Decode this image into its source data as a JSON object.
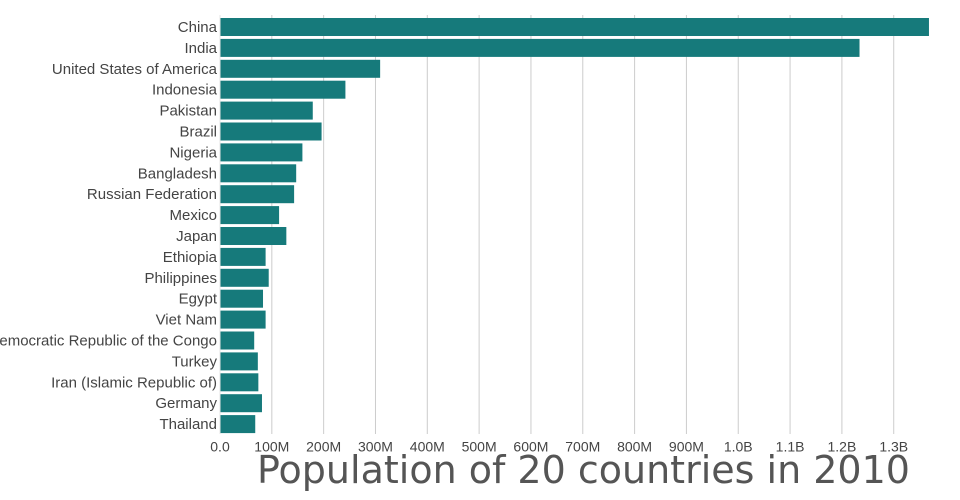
{
  "chart_data": {
    "type": "bar",
    "orientation": "horizontal",
    "title": "Population of 20 countries in 2010",
    "xlabel": "",
    "ylabel": "",
    "xlim": [
      0,
      1370000000
    ],
    "grid": true,
    "bar_color": "#167a7b",
    "text_color": "#444444",
    "title_color": "#555555",
    "grid_color": "#cccccc",
    "ticks": [
      {
        "value": 0,
        "label": "0.0"
      },
      {
        "value": 100000000,
        "label": "100M"
      },
      {
        "value": 200000000,
        "label": "200M"
      },
      {
        "value": 300000000,
        "label": "300M"
      },
      {
        "value": 400000000,
        "label": "400M"
      },
      {
        "value": 500000000,
        "label": "500M"
      },
      {
        "value": 600000000,
        "label": "600M"
      },
      {
        "value": 700000000,
        "label": "700M"
      },
      {
        "value": 800000000,
        "label": "800M"
      },
      {
        "value": 900000000,
        "label": "900M"
      },
      {
        "value": 1000000000,
        "label": "1.0B"
      },
      {
        "value": 1100000000,
        "label": "1.1B"
      },
      {
        "value": 1200000000,
        "label": "1.2B"
      },
      {
        "value": 1300000000,
        "label": "1.3B"
      }
    ],
    "categories": [
      "China",
      "India",
      "United States of America",
      "Indonesia",
      "Pakistan",
      "Brazil",
      "Nigeria",
      "Bangladesh",
      "Russian Federation",
      "Mexico",
      "Japan",
      "Ethiopia",
      "Philippines",
      "Egypt",
      "Viet Nam",
      "Democratic Republic of the Congo",
      "Turkey",
      "Iran (Islamic Republic of)",
      "Germany",
      "Thailand"
    ],
    "values": [
      1368000000,
      1234000000,
      309000000,
      242000000,
      179000000,
      196000000,
      159000000,
      147000000,
      143000000,
      114000000,
      128000000,
      88000000,
      94000000,
      83000000,
      88000000,
      66000000,
      73000000,
      74000000,
      81000000,
      68000000
    ]
  }
}
